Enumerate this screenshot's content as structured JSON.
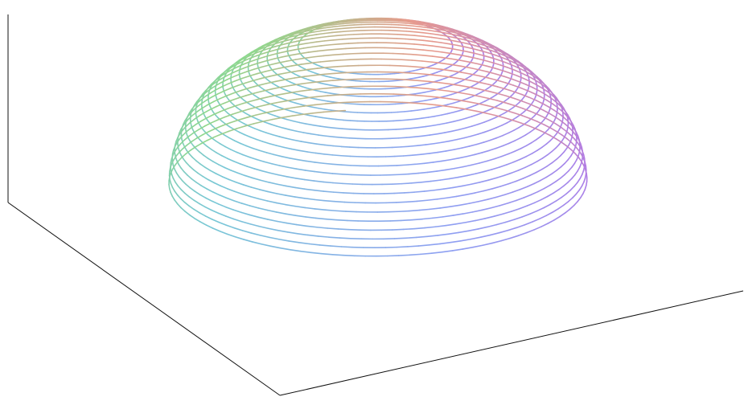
{
  "chart_data": {
    "type": "line",
    "projection": "3d",
    "title": "",
    "xlabel": "",
    "ylabel": "",
    "zlabel": "",
    "grid": false,
    "axes_box": "partial-frame",
    "series": [
      {
        "curve": "spherical-spiral",
        "turns": 22,
        "polar_angle_range_deg": [
          20,
          90
        ],
        "colormap": "hue-by-azimuth",
        "colors": [
          "#b07be6",
          "#8fa0f2",
          "#78c7d6",
          "#8fd88c",
          "#e79a8c"
        ]
      }
    ]
  }
}
